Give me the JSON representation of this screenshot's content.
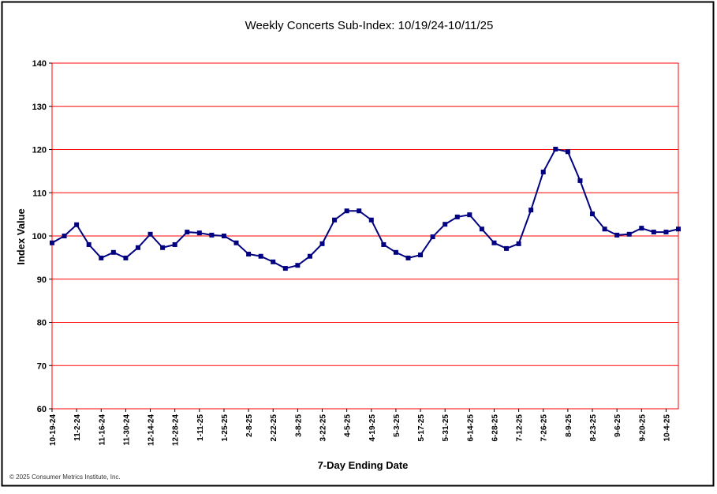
{
  "chart_data": {
    "type": "line",
    "title": "Weekly Concerts Sub-Index: 10/19/24-10/11/25",
    "xlabel": "7-Day Ending Date",
    "ylabel": "Index Value",
    "ylim": [
      60,
      140
    ],
    "yticks": [
      60,
      70,
      80,
      90,
      100,
      110,
      120,
      130,
      140
    ],
    "grid": true,
    "tick_labels": [
      "10-19-24",
      "11-2-24",
      "11-16-24",
      "11-30-24",
      "12-14-24",
      "12-28-24",
      "1-11-25",
      "1-25-25",
      "2-8-25",
      "2-22-25",
      "3-8-25",
      "3-22-25",
      "4-5-25",
      "4-19-25",
      "5-3-25",
      "5-17-25",
      "5-31-25",
      "6-14-25",
      "6-28-25",
      "7-12-25",
      "7-26-25",
      "8-9-25",
      "8-23-25",
      "9-6-25",
      "9-20-25",
      "10-4-25"
    ],
    "series": [
      {
        "name": "Weekly Concerts Sub-Index",
        "color": "#000080",
        "values": [
          98.4,
          100,
          102.6,
          98,
          94.9,
          96.2,
          94.9,
          97.3,
          100.4,
          97.3,
          98,
          100.9,
          100.7,
          100.2,
          100,
          98.4,
          95.8,
          95.3,
          94,
          92.5,
          93.2,
          95.3,
          98.2,
          103.7,
          105.8,
          105.8,
          103.7,
          98,
          96.2,
          94.9,
          95.6,
          99.8,
          102.7,
          104.4,
          104.9,
          101.6,
          98.4,
          97.1,
          98.2,
          106,
          114.8,
          120.1,
          119.5,
          112.8,
          105.1,
          101.6,
          100.2,
          100.4,
          101.8,
          100.9,
          100.9,
          101.6
        ]
      }
    ],
    "gridline_color": "#ff0000"
  },
  "footer": {
    "copyright": "© 2025 Consumer Metrics Institute, Inc."
  }
}
